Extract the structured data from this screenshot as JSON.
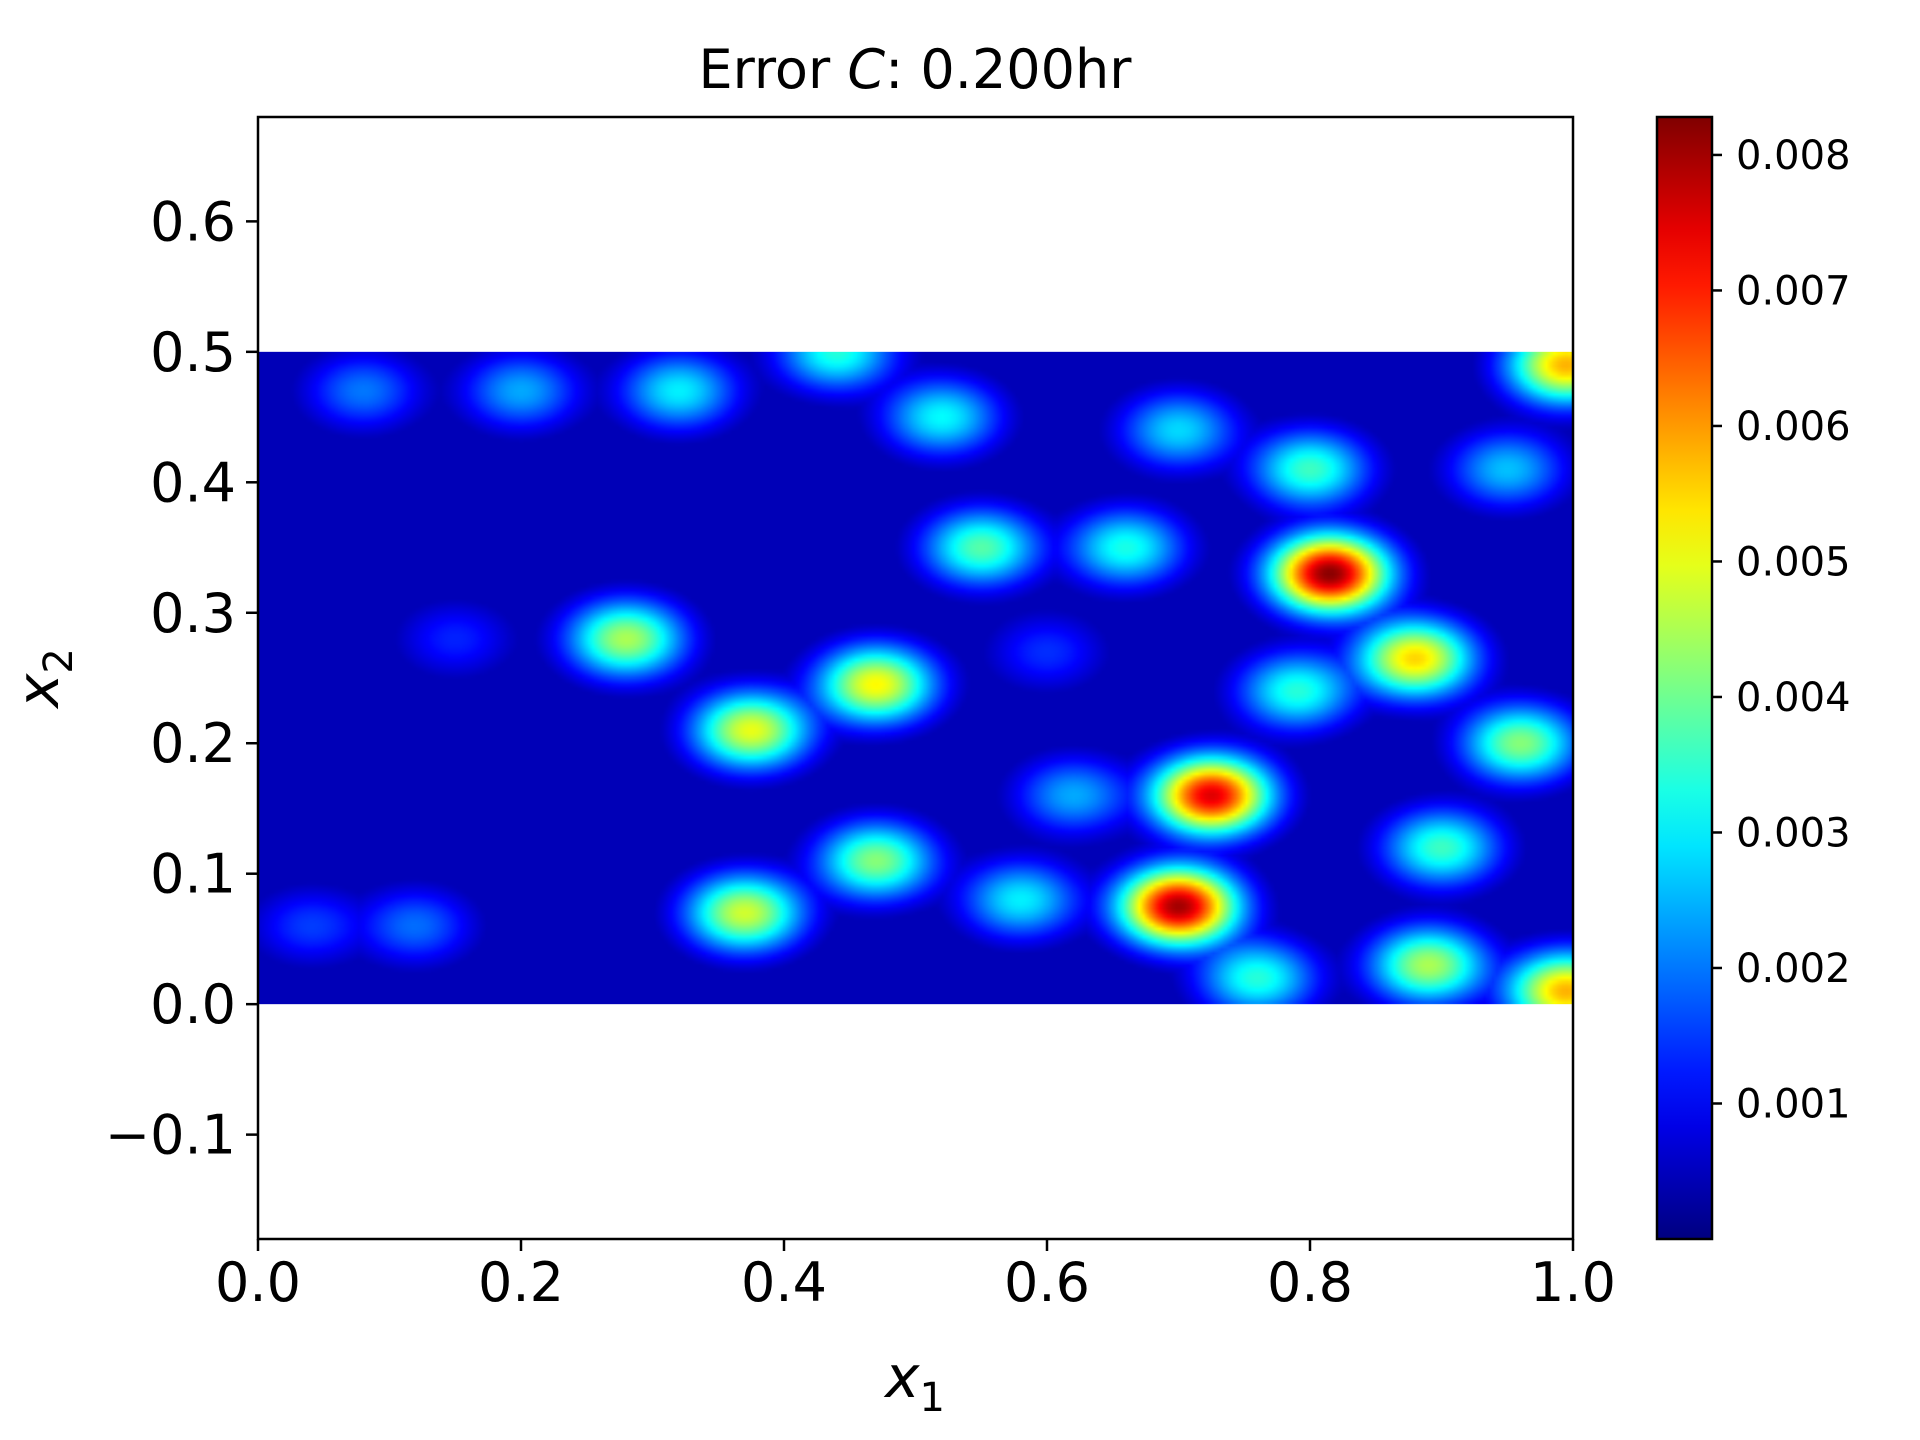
{
  "chart_data": {
    "type": "heatmap",
    "title": {
      "prefix": "Error ",
      "variable": "C",
      "suffix": ": 0.200hr"
    },
    "xlabel": {
      "base": "x",
      "sub": "1"
    },
    "ylabel": {
      "base": "x",
      "sub": "2"
    },
    "xlim": [
      0.0,
      1.0
    ],
    "ylim": [
      -0.18,
      0.68
    ],
    "xticks": [
      0.0,
      0.2,
      0.4,
      0.6,
      0.8,
      1.0
    ],
    "xtick_labels": [
      "0.0",
      "0.2",
      "0.4",
      "0.6",
      "0.8",
      "1.0"
    ],
    "yticks": [
      -0.1,
      0.0,
      0.1,
      0.2,
      0.3,
      0.4,
      0.5,
      0.6
    ],
    "ytick_labels": [
      "−0.1",
      "0.0",
      "0.1",
      "0.2",
      "0.3",
      "0.4",
      "0.5",
      "0.6"
    ],
    "data_extent": {
      "x": [
        0.0,
        1.0
      ],
      "y": [
        0.0,
        0.5
      ]
    },
    "colormap": "jet",
    "colorbar": {
      "vmin": 0.0,
      "vmax": 0.00828,
      "ticks": [
        0.001,
        0.002,
        0.003,
        0.004,
        0.005,
        0.006,
        0.007,
        0.008
      ],
      "tick_labels": [
        "0.001",
        "0.002",
        "0.003",
        "0.004",
        "0.005",
        "0.006",
        "0.007",
        "0.008"
      ]
    },
    "hotspots": [
      {
        "x": 0.815,
        "y": 0.33,
        "value": 0.0082
      },
      {
        "x": 0.7,
        "y": 0.075,
        "value": 0.008
      },
      {
        "x": 0.725,
        "y": 0.16,
        "value": 0.0075
      },
      {
        "x": 0.88,
        "y": 0.265,
        "value": 0.0055
      },
      {
        "x": 0.47,
        "y": 0.245,
        "value": 0.0052
      },
      {
        "x": 0.375,
        "y": 0.21,
        "value": 0.005
      },
      {
        "x": 0.37,
        "y": 0.07,
        "value": 0.0048
      },
      {
        "x": 0.47,
        "y": 0.11,
        "value": 0.0042
      },
      {
        "x": 0.28,
        "y": 0.28,
        "value": 0.0045
      },
      {
        "x": 0.89,
        "y": 0.03,
        "value": 0.0045
      },
      {
        "x": 0.995,
        "y": 0.49,
        "value": 0.0058
      },
      {
        "x": 0.995,
        "y": 0.01,
        "value": 0.0058
      },
      {
        "x": 0.55,
        "y": 0.35,
        "value": 0.0038
      },
      {
        "x": 0.96,
        "y": 0.2,
        "value": 0.0042
      },
      {
        "x": 0.9,
        "y": 0.12,
        "value": 0.0036
      },
      {
        "x": 0.66,
        "y": 0.35,
        "value": 0.0033
      },
      {
        "x": 0.8,
        "y": 0.41,
        "value": 0.0036
      },
      {
        "x": 0.32,
        "y": 0.47,
        "value": 0.003
      },
      {
        "x": 0.44,
        "y": 0.5,
        "value": 0.0034
      },
      {
        "x": 0.52,
        "y": 0.45,
        "value": 0.0031
      },
      {
        "x": 0.7,
        "y": 0.44,
        "value": 0.0028
      },
      {
        "x": 0.08,
        "y": 0.47,
        "value": 0.002
      },
      {
        "x": 0.2,
        "y": 0.47,
        "value": 0.0024
      },
      {
        "x": 0.04,
        "y": 0.06,
        "value": 0.0015
      },
      {
        "x": 0.12,
        "y": 0.06,
        "value": 0.0019
      },
      {
        "x": 0.15,
        "y": 0.28,
        "value": 0.0013
      },
      {
        "x": 0.58,
        "y": 0.08,
        "value": 0.003
      },
      {
        "x": 0.79,
        "y": 0.24,
        "value": 0.0034
      },
      {
        "x": 0.62,
        "y": 0.16,
        "value": 0.0024
      },
      {
        "x": 0.76,
        "y": 0.02,
        "value": 0.0034
      },
      {
        "x": 0.95,
        "y": 0.41,
        "value": 0.0026
      },
      {
        "x": 0.6,
        "y": 0.27,
        "value": 0.0014
      }
    ]
  }
}
